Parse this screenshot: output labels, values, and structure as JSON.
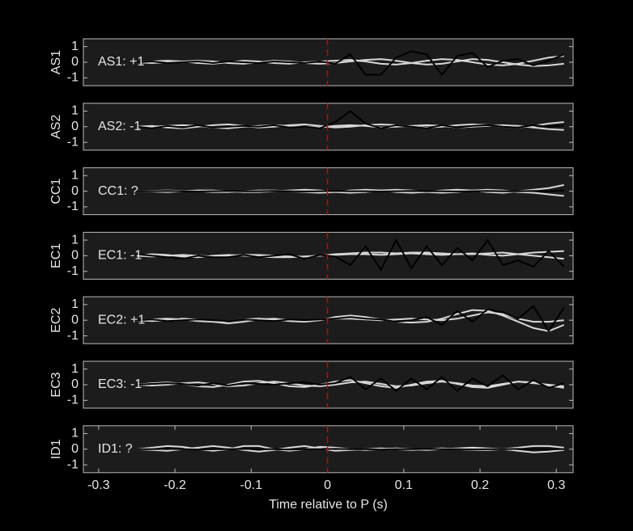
{
  "chart_data": [
    {
      "type": "line",
      "ylabel": "AS1",
      "annotation": {
        "text": "AS1: +1",
        "color": "#c00000"
      },
      "x": [
        -0.25,
        -0.23,
        -0.21,
        -0.19,
        -0.17,
        -0.15,
        -0.13,
        -0.11,
        -0.09,
        -0.07,
        -0.05,
        -0.03,
        -0.01,
        0.01,
        0.03,
        0.05,
        0.07,
        0.09,
        0.11,
        0.13,
        0.15,
        0.17,
        0.19,
        0.21,
        0.23,
        0.25,
        0.27,
        0.29,
        0.31
      ],
      "series": [
        {
          "color": "#d8d8d8",
          "values": [
            0,
            0.05,
            0.1,
            0.05,
            -0.05,
            -0.1,
            0,
            0.1,
            0.05,
            -0.05,
            -0.1,
            0,
            0.05,
            0.1,
            0.15,
            0.05,
            -0.1,
            -0.15,
            -0.05,
            0.1,
            0.2,
            0.15,
            0,
            -0.15,
            -0.2,
            -0.1,
            0.1,
            0.3,
            0.4
          ]
        },
        {
          "color": "#d8d8d8",
          "values": [
            0,
            -0.05,
            0,
            0.05,
            0.1,
            0.05,
            -0.05,
            -0.1,
            0,
            0.1,
            0.05,
            -0.05,
            -0.1,
            -0.05,
            0.05,
            0.15,
            0.2,
            0.1,
            -0.05,
            -0.15,
            -0.1,
            0.05,
            0.2,
            0.15,
            0,
            -0.15,
            -0.25,
            -0.2,
            -0.1
          ]
        },
        {
          "color": "#000000",
          "values": [
            0,
            0.05,
            -0.05,
            0,
            0.05,
            -0.05,
            0.05,
            0,
            -0.05,
            0.05,
            0,
            -0.05,
            0.05,
            -0.1,
            0.5,
            -0.8,
            -0.8,
            0.3,
            0.7,
            0.5,
            -0.8,
            0.4,
            0.6,
            -0.3,
            0.1,
            0.2,
            -0.2,
            0.1,
            0.5
          ]
        }
      ],
      "xlim": [
        -0.32,
        0.322
      ],
      "ylim": [
        -1.5,
        1.5
      ],
      "yticks": [
        -1,
        0,
        1
      ],
      "vline": {
        "x": 0,
        "color": "#d00000"
      }
    },
    {
      "type": "line",
      "ylabel": "AS2",
      "annotation": {
        "text": "AS2: -1",
        "color": "#0000a0"
      },
      "x": [
        -0.25,
        -0.23,
        -0.21,
        -0.19,
        -0.17,
        -0.15,
        -0.13,
        -0.11,
        -0.09,
        -0.07,
        -0.05,
        -0.03,
        -0.01,
        0.01,
        0.03,
        0.05,
        0.07,
        0.09,
        0.11,
        0.13,
        0.15,
        0.17,
        0.19,
        0.21,
        0.23,
        0.25,
        0.27,
        0.29,
        0.31
      ],
      "series": [
        {
          "color": "#d8d8d8",
          "values": [
            0,
            0.05,
            -0.05,
            -0.1,
            0,
            0.1,
            0.15,
            0.05,
            -0.05,
            0,
            0.1,
            0.15,
            0.05,
            -0.05,
            0,
            0.1,
            0.15,
            0.1,
            0,
            -0.05,
            0,
            0.1,
            0.15,
            0.1,
            0,
            -0.05,
            0.05,
            0.2,
            0.3
          ]
        },
        {
          "color": "#d8d8d8",
          "values": [
            -0.05,
            0,
            0.05,
            0.1,
            0.05,
            -0.05,
            -0.1,
            0,
            0.05,
            0.1,
            0.05,
            0,
            -0.05,
            0.05,
            0.1,
            0.05,
            -0.05,
            0,
            0.05,
            0.1,
            0.05,
            -0.05,
            0,
            0.05,
            0.1,
            0.05,
            -0.05,
            -0.15,
            -0.2
          ]
        },
        {
          "color": "#000000",
          "values": [
            0,
            -0.1,
            0.05,
            -0.05,
            0.1,
            -0.05,
            0,
            0.05,
            0,
            0.1,
            -0.05,
            0,
            -0.1,
            0.3,
            1.0,
            0.2,
            -0.1,
            0.1,
            0,
            -0.1,
            0.1,
            -0.05,
            0.05,
            0.1,
            0,
            -0.05,
            0.1,
            0,
            0.1
          ]
        }
      ],
      "xlim": [
        -0.32,
        0.322
      ],
      "ylim": [
        -1.5,
        1.5
      ],
      "yticks": [
        -1,
        0,
        1
      ],
      "vline": {
        "x": 0,
        "color": "#d00000"
      }
    },
    {
      "type": "line",
      "ylabel": "CC1",
      "annotation": {
        "text": "CC1: ?",
        "color": "#8c8c8c"
      },
      "x": [
        -0.25,
        -0.23,
        -0.21,
        -0.19,
        -0.17,
        -0.15,
        -0.13,
        -0.11,
        -0.09,
        -0.07,
        -0.05,
        -0.03,
        -0.01,
        0.01,
        0.03,
        0.05,
        0.07,
        0.09,
        0.11,
        0.13,
        0.15,
        0.17,
        0.19,
        0.21,
        0.23,
        0.25,
        0.27,
        0.29,
        0.31
      ],
      "series": [
        {
          "color": "#d8d8d8",
          "values": [
            0,
            0.02,
            0.05,
            0.02,
            0,
            -0.05,
            -0.05,
            0,
            0.05,
            0.05,
            0,
            -0.05,
            -0.1,
            -0.05,
            0.05,
            0.1,
            0.05,
            -0.05,
            -0.1,
            -0.05,
            0.05,
            0.1,
            0.05,
            -0.05,
            -0.1,
            0,
            0.1,
            0.2,
            0.4
          ]
        },
        {
          "color": "#d8d8d8",
          "values": [
            0,
            -0.02,
            -0.05,
            0,
            0.05,
            0.05,
            0,
            -0.05,
            -0.05,
            0,
            0.05,
            0.1,
            0.05,
            -0.05,
            -0.1,
            -0.05,
            0.05,
            0.1,
            0.05,
            -0.05,
            -0.1,
            -0.05,
            0.05,
            0.1,
            0.05,
            -0.05,
            -0.1,
            -0.2,
            -0.3
          ]
        },
        {
          "color": "#000000",
          "values": [
            0,
            0,
            0.02,
            0,
            -0.02,
            0,
            0.02,
            0,
            0,
            0.02,
            0,
            -0.02,
            0,
            0.02,
            0,
            0,
            -0.02,
            0,
            0.02,
            0,
            0,
            -0.02,
            0,
            0.02,
            0,
            0,
            0.02,
            0,
            0.05
          ]
        }
      ],
      "xlim": [
        -0.32,
        0.322
      ],
      "ylim": [
        -1.5,
        1.5
      ],
      "yticks": [
        -1,
        0,
        1
      ],
      "vline": {
        "x": 0,
        "color": "#d00000"
      }
    },
    {
      "type": "line",
      "ylabel": "EC1",
      "annotation": {
        "text": "EC1: -1",
        "color": "#0000a0"
      },
      "x": [
        -0.25,
        -0.23,
        -0.21,
        -0.19,
        -0.17,
        -0.15,
        -0.13,
        -0.11,
        -0.09,
        -0.07,
        -0.05,
        -0.03,
        -0.01,
        0.01,
        0.03,
        0.05,
        0.07,
        0.09,
        0.11,
        0.13,
        0.15,
        0.17,
        0.19,
        0.21,
        0.23,
        0.25,
        0.27,
        0.29,
        0.31
      ],
      "series": [
        {
          "color": "#d8d8d8",
          "values": [
            0,
            0.1,
            0.05,
            -0.05,
            -0.1,
            0,
            0.05,
            0,
            -0.05,
            -0.1,
            -0.1,
            -0.05,
            0,
            0.1,
            0.15,
            0.2,
            0.2,
            0.15,
            0.2,
            0.2,
            0.15,
            0.1,
            0.1,
            0.15,
            0.2,
            0.1,
            0,
            -0.1,
            -0.2
          ]
        },
        {
          "color": "#d8d8d8",
          "values": [
            0,
            -0.05,
            0,
            0.05,
            0,
            -0.05,
            0,
            0.05,
            0.05,
            0,
            -0.05,
            -0.05,
            0,
            0.05,
            0.1,
            0.1,
            0.05,
            0.1,
            0.15,
            0.1,
            0.05,
            0.1,
            0.15,
            0.05,
            0,
            0.1,
            0.2,
            0.25,
            0.3
          ]
        },
        {
          "color": "#000000",
          "values": [
            0.1,
            0,
            -0.1,
            -0.2,
            0,
            -0.1,
            -0.1,
            0.05,
            -0.1,
            0,
            0.1,
            -0.2,
            0.05,
            -0.05,
            -0.6,
            0.6,
            -0.9,
            1.0,
            -0.8,
            0.6,
            -0.6,
            0.5,
            -0.3,
            1.0,
            -0.6,
            -0.3,
            -0.7,
            0.3,
            -0.7
          ]
        }
      ],
      "xlim": [
        -0.32,
        0.322
      ],
      "ylim": [
        -1.5,
        1.5
      ],
      "yticks": [
        -1,
        0,
        1
      ],
      "vline": {
        "x": 0,
        "color": "#d00000"
      }
    },
    {
      "type": "line",
      "ylabel": "EC2",
      "annotation": {
        "text": "EC2: +1",
        "color": "#c00000"
      },
      "x": [
        -0.25,
        -0.23,
        -0.21,
        -0.19,
        -0.17,
        -0.15,
        -0.13,
        -0.11,
        -0.09,
        -0.07,
        -0.05,
        -0.03,
        -0.01,
        0.01,
        0.03,
        0.05,
        0.07,
        0.09,
        0.11,
        0.13,
        0.15,
        0.17,
        0.19,
        0.21,
        0.23,
        0.25,
        0.27,
        0.29,
        0.31
      ],
      "series": [
        {
          "color": "#d8d8d8",
          "values": [
            0,
            0.05,
            0.1,
            0.05,
            -0.05,
            -0.1,
            -0.05,
            0.05,
            0.1,
            0.05,
            -0.05,
            -0.1,
            0,
            0.2,
            0.3,
            0.2,
            0.05,
            -0.1,
            -0.15,
            -0.1,
            0.1,
            0.4,
            0.65,
            0.6,
            0.3,
            -0.1,
            -0.5,
            -0.7,
            -0.3
          ]
        },
        {
          "color": "#d8d8d8",
          "values": [
            0,
            -0.05,
            0,
            0.1,
            0.05,
            -0.1,
            -0.2,
            -0.1,
            0.05,
            0.1,
            0,
            -0.05,
            0.05,
            0.1,
            0.1,
            0.05,
            0,
            0.05,
            0.1,
            0.05,
            0,
            0.1,
            0.3,
            0.5,
            0.4,
            0.1,
            -0.1,
            -0.1,
            0
          ]
        },
        {
          "color": "#000000",
          "values": [
            0,
            0.05,
            -0.05,
            0,
            0.05,
            0,
            -0.05,
            0.05,
            0,
            -0.05,
            0.05,
            0,
            0.05,
            0.1,
            0.2,
            0.1,
            0.05,
            -0.1,
            0,
            0.2,
            -0.3,
            0.6,
            -0.1,
            0.7,
            0.5,
            0.1,
            0.9,
            -0.7,
            0.8
          ]
        }
      ],
      "xlim": [
        -0.32,
        0.322
      ],
      "ylim": [
        -1.5,
        1.5
      ],
      "yticks": [
        -1,
        0,
        1
      ],
      "vline": {
        "x": 0,
        "color": "#d00000"
      }
    },
    {
      "type": "line",
      "ylabel": "EC3",
      "annotation": {
        "text": "EC3: -1",
        "color": "#0000a0"
      },
      "x": [
        -0.25,
        -0.23,
        -0.21,
        -0.19,
        -0.17,
        -0.15,
        -0.13,
        -0.11,
        -0.09,
        -0.07,
        -0.05,
        -0.03,
        -0.01,
        0.01,
        0.03,
        0.05,
        0.07,
        0.09,
        0.11,
        0.13,
        0.15,
        0.17,
        0.19,
        0.21,
        0.23,
        0.25,
        0.27,
        0.29,
        0.31
      ],
      "series": [
        {
          "color": "#d8d8d8",
          "values": [
            0,
            0.1,
            0.15,
            0.05,
            -0.1,
            -0.15,
            0,
            0.2,
            0.25,
            0.1,
            -0.1,
            -0.15,
            0,
            0.2,
            0.3,
            0.1,
            -0.1,
            -0.2,
            0,
            0.2,
            0.25,
            0.05,
            -0.15,
            -0.2,
            0,
            0.2,
            0.15,
            -0.05,
            -0.2
          ]
        },
        {
          "color": "#d8d8d8",
          "values": [
            0,
            -0.05,
            0,
            0.1,
            0.15,
            0.05,
            -0.1,
            -0.05,
            0.1,
            0.2,
            0.1,
            -0.05,
            -0.1,
            0,
            0.15,
            0.2,
            0.05,
            -0.1,
            -0.05,
            0.1,
            0.2,
            0.1,
            -0.05,
            -0.1,
            0.05,
            0.2,
            0.1,
            0,
            -0.1
          ]
        },
        {
          "color": "#000000",
          "values": [
            0,
            0.05,
            0.1,
            0.05,
            -0.05,
            0.1,
            -0.05,
            0.1,
            0.05,
            0,
            0.1,
            0.15,
            0,
            0.1,
            0.5,
            -0.3,
            0.4,
            -0.4,
            0.4,
            -0.3,
            0.5,
            -0.4,
            0.4,
            -0.1,
            0.6,
            -0.3,
            0.3,
            -0.2,
            0.1
          ]
        }
      ],
      "xlim": [
        -0.32,
        0.322
      ],
      "ylim": [
        -1.5,
        1.5
      ],
      "yticks": [
        -1,
        0,
        1
      ],
      "vline": {
        "x": 0,
        "color": "#d00000"
      }
    },
    {
      "type": "line",
      "ylabel": "ID1",
      "annotation": {
        "text": "ID1: ?",
        "color": "#8c8c8c"
      },
      "x": [
        -0.25,
        -0.23,
        -0.21,
        -0.19,
        -0.17,
        -0.15,
        -0.13,
        -0.11,
        -0.09,
        -0.07,
        -0.05,
        -0.03,
        -0.01,
        0.01,
        0.03,
        0.05,
        0.07,
        0.09,
        0.11,
        0.13,
        0.15,
        0.17,
        0.19,
        0.21,
        0.23,
        0.25,
        0.27,
        0.29,
        0.31
      ],
      "series": [
        {
          "color": "#d8d8d8",
          "values": [
            0,
            0.1,
            0.2,
            0.15,
            0,
            -0.1,
            0,
            0.2,
            0.2,
            0,
            -0.1,
            0,
            0.15,
            0.1,
            0,
            -0.05,
            0,
            0.05,
            0,
            -0.05,
            0,
            0.05,
            0.1,
            0.05,
            0,
            0.1,
            0.2,
            0.2,
            0.1
          ]
        },
        {
          "color": "#d8d8d8",
          "values": [
            0,
            -0.05,
            -0.1,
            0,
            0.1,
            0.2,
            0.1,
            -0.05,
            -0.15,
            -0.05,
            0.1,
            0.2,
            0.05,
            -0.1,
            -0.05,
            0,
            0.05,
            0,
            -0.05,
            0,
            0.05,
            0,
            -0.05,
            -0.05,
            0,
            -0.1,
            -0.2,
            -0.15,
            -0.05
          ]
        },
        {
          "color": "#000000",
          "values": [
            0,
            0,
            0.02,
            0,
            -0.02,
            0,
            0,
            0.02,
            0,
            0,
            -0.02,
            0,
            0,
            0.02,
            0,
            0,
            -0.02,
            0,
            0,
            0.02,
            0,
            0,
            -0.02,
            0,
            0,
            0.02,
            0,
            0,
            0
          ]
        }
      ],
      "xlim": [
        -0.32,
        0.322
      ],
      "ylim": [
        -1.5,
        1.5
      ],
      "yticks": [
        -1,
        0,
        1
      ],
      "vline": {
        "x": 0,
        "color": "#d00000"
      },
      "xticks": [
        -0.3,
        -0.2,
        -0.1,
        0,
        0.1,
        0.2,
        0.3
      ],
      "xlabel": "Time relative to P (s)"
    }
  ]
}
